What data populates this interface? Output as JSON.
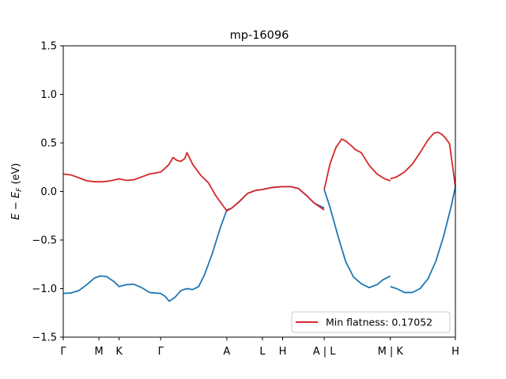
{
  "chart_data": {
    "type": "line",
    "title": "mp-16096",
    "ylabel": "E − E_F (eV)",
    "xlabel": "",
    "ylim": [
      -1.5,
      1.5
    ],
    "xlim": [
      0,
      1
    ],
    "yticks": [
      -1.5,
      -1.0,
      -0.5,
      0.0,
      0.5,
      1.0,
      1.5
    ],
    "ytick_labels": [
      "−1.5",
      "−1.0",
      "−0.5",
      "0.0",
      "0.5",
      "1.0",
      "1.5"
    ],
    "xticks": [
      {
        "pos": 0.0,
        "label": "Γ"
      },
      {
        "pos": 0.0909,
        "label": "M"
      },
      {
        "pos": 0.1424,
        "label": "K"
      },
      {
        "pos": 0.2484,
        "label": "Γ"
      },
      {
        "pos": 0.4171,
        "label": "A"
      },
      {
        "pos": 0.508,
        "label": "L"
      },
      {
        "pos": 0.5595,
        "label": "H"
      },
      {
        "pos": 0.6655,
        "label": "A | L"
      },
      {
        "pos": 0.8342,
        "label": "M | K"
      },
      {
        "pos": 1.0,
        "label": "H"
      }
    ],
    "legend": {
      "label": "Min flatness: 0.17052",
      "position": "lower-right"
    },
    "grid": false,
    "series": [
      {
        "color": "#1f77b4",
        "segments": [
          [
            [
              0.0,
              -1.05
            ],
            [
              0.02,
              -1.045
            ],
            [
              0.04,
              -1.02
            ],
            [
              0.06,
              -0.96
            ],
            [
              0.08,
              -0.89
            ],
            [
              0.095,
              -0.87
            ],
            [
              0.11,
              -0.875
            ],
            [
              0.13,
              -0.93
            ],
            [
              0.1424,
              -0.98
            ],
            [
              0.16,
              -0.96
            ],
            [
              0.18,
              -0.955
            ],
            [
              0.2,
              -0.99
            ],
            [
              0.22,
              -1.04
            ],
            [
              0.2484,
              -1.05
            ],
            [
              0.26,
              -1.08
            ],
            [
              0.27,
              -1.13
            ],
            [
              0.285,
              -1.09
            ],
            [
              0.3,
              -1.02
            ],
            [
              0.315,
              -1.0
            ],
            [
              0.33,
              -1.01
            ],
            [
              0.345,
              -0.98
            ],
            [
              0.36,
              -0.86
            ],
            [
              0.38,
              -0.64
            ],
            [
              0.4,
              -0.38
            ],
            [
              0.4171,
              -0.19
            ],
            [
              0.43,
              -0.17
            ],
            [
              0.45,
              -0.1
            ],
            [
              0.47,
              -0.02
            ],
            [
              0.49,
              0.01
            ],
            [
              0.508,
              0.02
            ],
            [
              0.53,
              0.04
            ],
            [
              0.5595,
              0.05
            ],
            [
              0.58,
              0.05
            ],
            [
              0.6,
              0.03
            ],
            [
              0.62,
              -0.04
            ],
            [
              0.64,
              -0.12
            ],
            [
              0.6655,
              -0.17
            ]
          ],
          [
            [
              0.6655,
              0.02
            ],
            [
              0.68,
              -0.16
            ],
            [
              0.7,
              -0.45
            ],
            [
              0.72,
              -0.72
            ],
            [
              0.74,
              -0.88
            ],
            [
              0.76,
              -0.95
            ],
            [
              0.78,
              -0.99
            ],
            [
              0.8,
              -0.96
            ],
            [
              0.815,
              -0.91
            ],
            [
              0.8342,
              -0.87
            ]
          ],
          [
            [
              0.8342,
              -0.98
            ],
            [
              0.85,
              -1.0
            ],
            [
              0.87,
              -1.04
            ],
            [
              0.89,
              -1.04
            ],
            [
              0.91,
              -1.0
            ],
            [
              0.93,
              -0.9
            ],
            [
              0.95,
              -0.72
            ],
            [
              0.97,
              -0.46
            ],
            [
              0.99,
              -0.14
            ],
            [
              1.0,
              0.05
            ]
          ]
        ]
      },
      {
        "color": "#d62728",
        "segments": [
          [
            [
              0.0,
              0.18
            ],
            [
              0.02,
              0.17
            ],
            [
              0.04,
              0.14
            ],
            [
              0.06,
              0.11
            ],
            [
              0.08,
              0.1
            ],
            [
              0.1,
              0.1
            ],
            [
              0.12,
              0.11
            ],
            [
              0.1424,
              0.13
            ],
            [
              0.16,
              0.115
            ],
            [
              0.18,
              0.12
            ],
            [
              0.2,
              0.15
            ],
            [
              0.22,
              0.18
            ],
            [
              0.2484,
              0.2
            ],
            [
              0.26,
              0.24
            ],
            [
              0.27,
              0.28
            ],
            [
              0.28,
              0.35
            ],
            [
              0.29,
              0.32
            ],
            [
              0.3,
              0.31
            ],
            [
              0.31,
              0.34
            ],
            [
              0.3155,
              0.4
            ],
            [
              0.33,
              0.28
            ],
            [
              0.35,
              0.17
            ],
            [
              0.37,
              0.09
            ],
            [
              0.39,
              -0.05
            ],
            [
              0.4171,
              -0.2
            ],
            [
              0.43,
              -0.17
            ],
            [
              0.45,
              -0.1
            ],
            [
              0.47,
              -0.02
            ],
            [
              0.49,
              0.01
            ],
            [
              0.508,
              0.02
            ],
            [
              0.53,
              0.04
            ],
            [
              0.5595,
              0.05
            ],
            [
              0.58,
              0.05
            ],
            [
              0.6,
              0.03
            ],
            [
              0.62,
              -0.04
            ],
            [
              0.64,
              -0.12
            ],
            [
              0.6655,
              -0.19
            ]
          ],
          [
            [
              0.6655,
              0.02
            ],
            [
              0.68,
              0.28
            ],
            [
              0.695,
              0.45
            ],
            [
              0.71,
              0.54
            ],
            [
              0.72,
              0.52
            ],
            [
              0.735,
              0.47
            ],
            [
              0.745,
              0.43
            ],
            [
              0.76,
              0.4
            ],
            [
              0.78,
              0.27
            ],
            [
              0.8,
              0.18
            ],
            [
              0.82,
              0.13
            ],
            [
              0.8342,
              0.11
            ]
          ],
          [
            [
              0.8342,
              0.13
            ],
            [
              0.85,
              0.15
            ],
            [
              0.87,
              0.2
            ],
            [
              0.89,
              0.28
            ],
            [
              0.91,
              0.4
            ],
            [
              0.93,
              0.53
            ],
            [
              0.945,
              0.6
            ],
            [
              0.955,
              0.61
            ],
            [
              0.965,
              0.59
            ],
            [
              0.975,
              0.55
            ],
            [
              0.985,
              0.49
            ],
            [
              1.0,
              0.05
            ]
          ]
        ]
      }
    ]
  }
}
